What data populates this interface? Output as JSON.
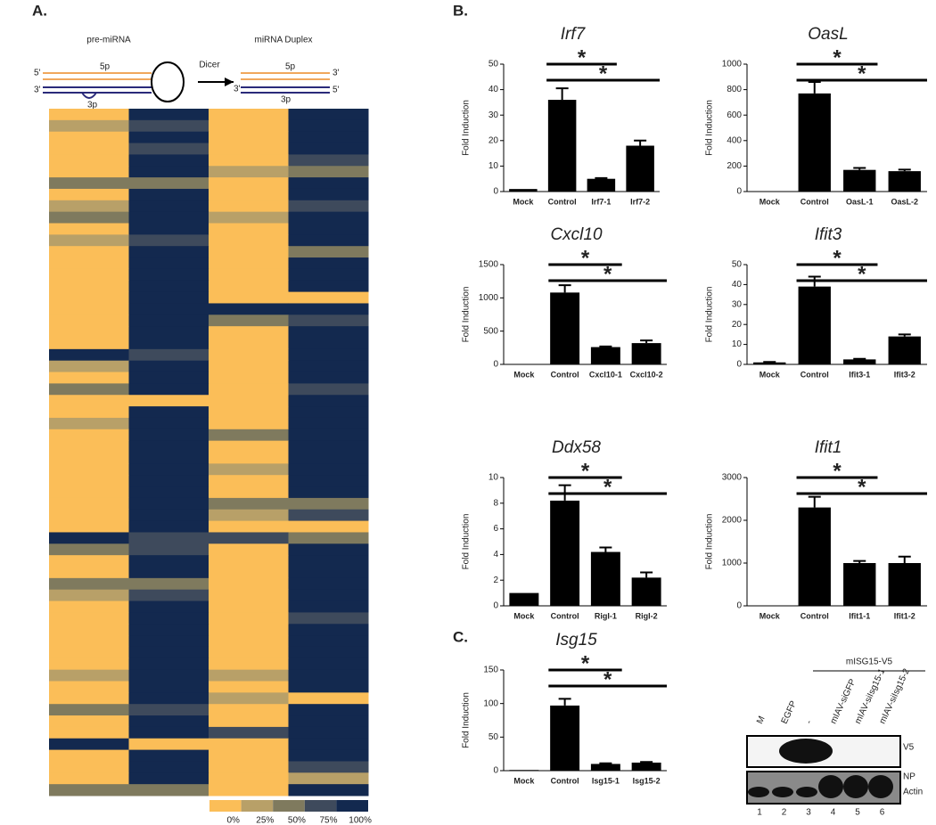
{
  "panels": [
    "A.",
    "B.",
    "C."
  ],
  "diagram": {
    "left": "pre-miRNA",
    "right": "miRNA Duplex",
    "arrow": "Dicer",
    "strands": [
      "5p",
      "3p"
    ],
    "ends": [
      "5'",
      "3'"
    ]
  },
  "blot": {
    "title": "mISG15-V5",
    "lanes": [
      "M",
      "EGFP",
      "-",
      "mIAV-siGFP",
      "mIAV-siIsg15-1",
      "mIAV-siIsg15-2"
    ],
    "lane_numbers": [
      "1",
      "2",
      "3",
      "4",
      "5",
      "6"
    ],
    "bands": [
      "V5",
      "NP",
      "Actin"
    ]
  },
  "chart_data": [
    {
      "type": "heatmap",
      "legend": {
        "values": [
          0,
          25,
          50,
          75,
          100
        ],
        "labels": [
          "0%",
          "25%",
          "50%",
          "75%",
          "100%"
        ],
        "colors": [
          "#fbbe58",
          "#b8a068",
          "#7f7a5e",
          "#3e4a5c",
          "#13294f"
        ]
      },
      "rows": [
        [
          0,
          100,
          0,
          100
        ],
        [
          25,
          75,
          0,
          100
        ],
        [
          0,
          100,
          0,
          100
        ],
        [
          0,
          75,
          0,
          100
        ],
        [
          0,
          100,
          0,
          75
        ],
        [
          0,
          100,
          25,
          50
        ],
        [
          50,
          50,
          0,
          100
        ],
        [
          0,
          100,
          0,
          100
        ],
        [
          25,
          100,
          0,
          75
        ],
        [
          50,
          100,
          25,
          100
        ],
        [
          0,
          100,
          0,
          100
        ],
        [
          25,
          75,
          0,
          100
        ],
        [
          0,
          100,
          0,
          50
        ],
        [
          0,
          100,
          0,
          100
        ],
        [
          0,
          100,
          0,
          100
        ],
        [
          0,
          100,
          0,
          100
        ],
        [
          0,
          100,
          0,
          0
        ],
        [
          0,
          100,
          100,
          100
        ],
        [
          0,
          100,
          50,
          75
        ],
        [
          0,
          100,
          0,
          100
        ],
        [
          0,
          100,
          0,
          100
        ],
        [
          100,
          75,
          0,
          100
        ],
        [
          25,
          100,
          0,
          100
        ],
        [
          0,
          100,
          0,
          100
        ],
        [
          50,
          100,
          0,
          75
        ],
        [
          0,
          0,
          0,
          100
        ],
        [
          0,
          100,
          0,
          100
        ],
        [
          25,
          100,
          0,
          100
        ],
        [
          0,
          100,
          50,
          100
        ],
        [
          0,
          100,
          0,
          100
        ],
        [
          0,
          100,
          0,
          100
        ],
        [
          0,
          100,
          25,
          100
        ],
        [
          0,
          100,
          0,
          100
        ],
        [
          0,
          100,
          0,
          100
        ],
        [
          0,
          100,
          50,
          50
        ],
        [
          0,
          100,
          25,
          75
        ],
        [
          0,
          100,
          0,
          0
        ],
        [
          100,
          75,
          75,
          50
        ],
        [
          50,
          75,
          0,
          100
        ],
        [
          0,
          100,
          0,
          100
        ],
        [
          0,
          100,
          0,
          100
        ],
        [
          50,
          50,
          0,
          100
        ],
        [
          25,
          75,
          0,
          100
        ],
        [
          0,
          100,
          0,
          100
        ],
        [
          0,
          100,
          0,
          75
        ],
        [
          0,
          100,
          0,
          100
        ],
        [
          0,
          100,
          0,
          100
        ],
        [
          0,
          100,
          0,
          100
        ],
        [
          0,
          100,
          0,
          100
        ],
        [
          25,
          100,
          25,
          100
        ],
        [
          0,
          100,
          0,
          100
        ],
        [
          0,
          100,
          25,
          0
        ],
        [
          50,
          75,
          0,
          100
        ],
        [
          0,
          100,
          0,
          100
        ],
        [
          0,
          100,
          75,
          100
        ],
        [
          100,
          0,
          0,
          100
        ],
        [
          0,
          100,
          0,
          100
        ],
        [
          0,
          100,
          0,
          75
        ],
        [
          0,
          100,
          0,
          25
        ],
        [
          50,
          50,
          0,
          100
        ]
      ]
    },
    {
      "type": "bar",
      "title": "Irf7",
      "ylabel": "Fold Induction",
      "categories": [
        "Mock",
        "Control",
        "Irf7-1",
        "Irf7-2"
      ],
      "values": [
        1,
        36,
        5,
        18
      ],
      "errors": [
        0,
        4.5,
        0.3,
        2
      ],
      "color": "#000000",
      "ylim": [
        0,
        50
      ],
      "yticks": [
        0,
        10,
        20,
        30,
        40,
        50
      ],
      "significance": [
        {
          "from": "Control",
          "to": "Irf7-1",
          "label": "*"
        },
        {
          "from": "Control",
          "to": "Irf7-2",
          "label": "*"
        }
      ]
    },
    {
      "type": "bar",
      "title": "OasL",
      "ylabel": "Fold Induction",
      "categories": [
        "Mock",
        "Control",
        "OasL-1",
        "OasL-2"
      ],
      "values": [
        0,
        770,
        170,
        160
      ],
      "errors": [
        0,
        90,
        15,
        12
      ],
      "color": "#000000",
      "ylim": [
        0,
        1000
      ],
      "yticks": [
        0,
        200,
        400,
        600,
        800,
        1000
      ],
      "significance": [
        {
          "from": "Control",
          "to": "OasL-1",
          "label": "*"
        },
        {
          "from": "Control",
          "to": "OasL-2",
          "label": "*"
        }
      ]
    },
    {
      "type": "bar",
      "title": "Cxcl10",
      "ylabel": "Fold Induction",
      "categories": [
        "Mock",
        "Control",
        "Cxcl10-1",
        "Cxcl10-2"
      ],
      "values": [
        0,
        1080,
        260,
        320
      ],
      "errors": [
        0,
        110,
        10,
        40
      ],
      "color": "#000000",
      "ylim": [
        0,
        1500
      ],
      "yticks": [
        0,
        500,
        1000,
        1500
      ],
      "significance": [
        {
          "from": "Control",
          "to": "Cxcl10-1",
          "label": "*"
        },
        {
          "from": "Control",
          "to": "Cxcl10-2",
          "label": "*"
        }
      ]
    },
    {
      "type": "bar",
      "title": "Ifit3",
      "ylabel": "Fold Induction",
      "categories": [
        "Mock",
        "Control",
        "Ifit3-1",
        "Ifit3-2"
      ],
      "values": [
        1,
        39,
        2.5,
        14
      ],
      "errors": [
        0.2,
        5,
        0.3,
        1
      ],
      "color": "#000000",
      "ylim": [
        0,
        50
      ],
      "yticks": [
        0,
        10,
        20,
        30,
        40,
        50
      ],
      "significance": [
        {
          "from": "Control",
          "to": "Ifit3-1",
          "label": "*"
        },
        {
          "from": "Control",
          "to": "Ifit3-2",
          "label": "*"
        }
      ]
    },
    {
      "type": "bar",
      "title": "Ddx58",
      "ylabel": "Fold Induction",
      "categories": [
        "Mock",
        "Control",
        "RigI-1",
        "RigI-2"
      ],
      "values": [
        1,
        8.2,
        4.2,
        2.2
      ],
      "errors": [
        0,
        1.2,
        0.35,
        0.4
      ],
      "color": "#000000",
      "ylim": [
        0,
        10
      ],
      "yticks": [
        0,
        2,
        4,
        6,
        8,
        10
      ],
      "significance": [
        {
          "from": "Control",
          "to": "RigI-1",
          "label": "*"
        },
        {
          "from": "Control",
          "to": "RigI-2",
          "label": "*"
        }
      ]
    },
    {
      "type": "bar",
      "title": "Ifit1",
      "ylabel": "Fold Induction",
      "categories": [
        "Mock",
        "Control",
        "Ifit1-1",
        "Ifit1-2"
      ],
      "values": [
        0,
        2300,
        1000,
        1000
      ],
      "errors": [
        0,
        250,
        50,
        150
      ],
      "color": "#000000",
      "ylim": [
        0,
        3000
      ],
      "yticks": [
        0,
        1000,
        2000,
        3000
      ],
      "significance": [
        {
          "from": "Control",
          "to": "Ifit1-1",
          "label": "*"
        },
        {
          "from": "Control",
          "to": "Ifit1-2",
          "label": "*"
        }
      ]
    },
    {
      "type": "bar",
      "title": "Isg15",
      "ylabel": "Fold Induction",
      "categories": [
        "Mock",
        "Control",
        "Isg15-1",
        "Isg15-2"
      ],
      "values": [
        1,
        97,
        10,
        12
      ],
      "errors": [
        0,
        10,
        1,
        1
      ],
      "color": "#000000",
      "ylim": [
        0,
        150
      ],
      "yticks": [
        0,
        50,
        100,
        150
      ],
      "significance": [
        {
          "from": "Control",
          "to": "Isg15-1",
          "label": "*"
        },
        {
          "from": "Control",
          "to": "Isg15-2",
          "label": "*"
        }
      ]
    }
  ]
}
